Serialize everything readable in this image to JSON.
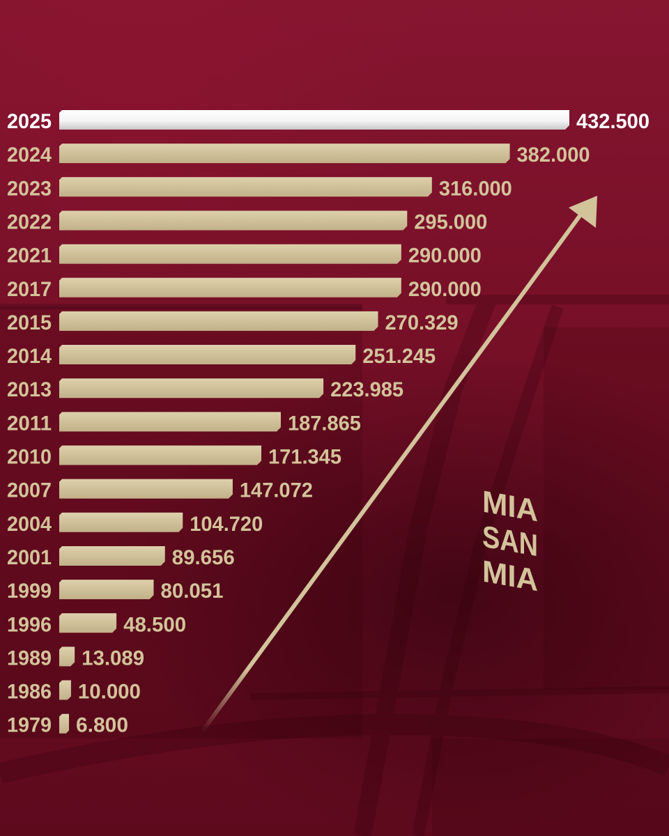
{
  "colors": {
    "background": "#7a0f26",
    "bar": "#d3c39b",
    "highlight_bar": "#ffffff",
    "label": "#d3c39b",
    "highlight_label": "#ffffff",
    "arrow": "#d3c39b"
  },
  "logo": {
    "lines": [
      "MIA",
      "SAN",
      "MIA"
    ]
  },
  "chart_data": {
    "type": "bar",
    "orientation": "horizontal",
    "title": "",
    "xlabel": "",
    "ylabel": "",
    "grid": false,
    "legend": "none",
    "xlim": [
      0,
      432500
    ],
    "categories": [
      "2025",
      "2024",
      "2023",
      "2022",
      "2021",
      "2017",
      "2015",
      "2014",
      "2013",
      "2011",
      "2010",
      "2007",
      "2004",
      "2001",
      "1999",
      "1996",
      "1989",
      "1986",
      "1979"
    ],
    "values": [
      432500,
      382000,
      316000,
      295000,
      290000,
      290000,
      270329,
      251245,
      223985,
      187865,
      171345,
      147072,
      104720,
      89656,
      80051,
      48500,
      13089,
      10000,
      6800
    ],
    "value_labels": [
      "432.500",
      "382.000",
      "316.000",
      "295.000",
      "290.000",
      "290.000",
      "270.329",
      "251.245",
      "223.985",
      "187.865",
      "171.345",
      "147.072",
      "104.720",
      "89.656",
      "80.051",
      "48.500",
      "13.089",
      "10.000",
      "6.800"
    ],
    "highlight_index": 0
  }
}
